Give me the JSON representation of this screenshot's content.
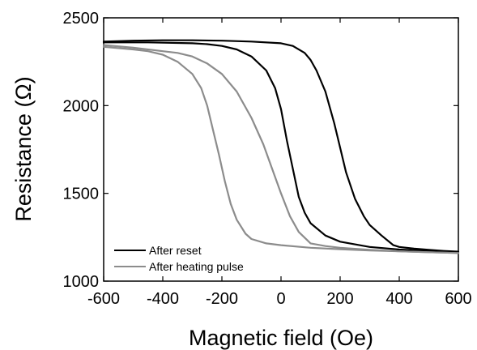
{
  "chart_data": {
    "type": "line",
    "xlabel": "Magnetic field (Oe)",
    "ylabel": "Resistance (Ω)",
    "xlim": [
      -600,
      600
    ],
    "ylim": [
      1000,
      2500
    ],
    "xticks": [
      -600,
      -400,
      -200,
      0,
      200,
      400,
      600
    ],
    "yticks": [
      1000,
      1500,
      2000,
      2500
    ],
    "grid": false,
    "legend_position": "bottom-left",
    "series": [
      {
        "name": "After reset",
        "color": "#000000",
        "loops": [
          {
            "x": [
              -600,
              -500,
              -400,
              -300,
              -200,
              -100,
              0,
              40,
              80,
              100,
              120,
              150,
              180,
              200,
              220,
              250,
              280,
              300,
              340,
              380,
              400,
              450,
              500,
              550,
              600
            ],
            "y": [
              2365,
              2370,
              2372,
              2372,
              2370,
              2365,
              2355,
              2340,
              2300,
              2260,
              2200,
              2080,
              1900,
              1760,
              1620,
              1470,
              1370,
              1320,
              1260,
              1205,
              1195,
              1185,
              1178,
              1172,
              1168
            ]
          },
          {
            "x": [
              -600,
              -450,
              -300,
              -250,
              -200,
              -150,
              -100,
              -50,
              -20,
              0,
              20,
              40,
              60,
              80,
              100,
              150,
              200,
              300,
              400,
              500,
              600
            ],
            "y": [
              2360,
              2360,
              2355,
              2350,
              2340,
              2320,
              2280,
              2200,
              2100,
              1980,
              1800,
              1640,
              1480,
              1390,
              1330,
              1260,
              1225,
              1195,
              1180,
              1172,
              1165
            ]
          }
        ]
      },
      {
        "name": "After heating pulse",
        "color": "#8c8c8c",
        "loops": [
          {
            "x": [
              -600,
              -500,
              -400,
              -350,
              -300,
              -250,
              -200,
              -150,
              -100,
              -60,
              -30,
              0,
              30,
              60,
              100,
              150,
              200,
              300,
              400,
              500,
              600
            ],
            "y": [
              2345,
              2330,
              2310,
              2300,
              2280,
              2240,
              2180,
              2080,
              1930,
              1780,
              1640,
              1500,
              1370,
              1280,
              1215,
              1200,
              1190,
              1178,
              1170,
              1165,
              1160
            ]
          },
          {
            "x": [
              -600,
              -500,
              -450,
              -400,
              -350,
              -300,
              -270,
              -250,
              -230,
              -210,
              -190,
              -170,
              -150,
              -120,
              -100,
              -50,
              0,
              100,
              200,
              300,
              400,
              500,
              600
            ],
            "y": [
              2335,
              2320,
              2310,
              2290,
              2250,
              2180,
              2100,
              2000,
              1860,
              1720,
              1570,
              1440,
              1350,
              1270,
              1240,
              1215,
              1205,
              1190,
              1182,
              1175,
              1170,
              1165,
              1160
            ]
          }
        ]
      }
    ]
  }
}
